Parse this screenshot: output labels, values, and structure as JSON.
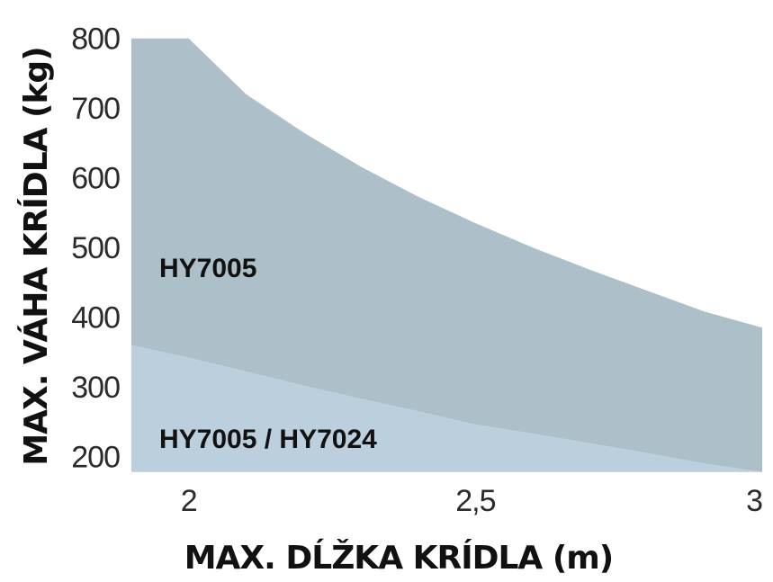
{
  "chart_data": {
    "type": "area",
    "xlabel": "MAX. DĹŽKA KRÍDLA (m)",
    "ylabel": "MAX. VÁHA KRÍDLA (kg)",
    "xlim": [
      1.9,
      3.0
    ],
    "ylim": [
      175,
      810
    ],
    "x_ticks": [
      2,
      2.5,
      3
    ],
    "x_tick_labels": [
      "2",
      "2,5",
      "3"
    ],
    "y_ticks": [
      200,
      300,
      400,
      500,
      600,
      700,
      800
    ],
    "y_tick_labels": [
      "200",
      "300",
      "400",
      "500",
      "600",
      "700",
      "800"
    ],
    "grid": false,
    "legend": "none",
    "series": [
      {
        "name": "HY7005",
        "color": "#adbfc9",
        "x": [
          1.9,
          2.0,
          2.1,
          2.2,
          2.3,
          2.4,
          2.5,
          2.6,
          2.7,
          2.8,
          2.9,
          3.0
        ],
        "upper": [
          800,
          800,
          720,
          665,
          616,
          573,
          535,
          500,
          468,
          438,
          408,
          385
        ],
        "lower": [
          360,
          342,
          322,
          302,
          283,
          265,
          246,
          233,
          219,
          205,
          190,
          178
        ]
      },
      {
        "name": "HY7005 / HY7024",
        "color": "#bccfdc",
        "x": [
          1.9,
          2.0,
          2.1,
          2.2,
          2.3,
          2.4,
          2.5,
          2.6,
          2.7,
          2.8,
          2.9,
          3.0
        ],
        "upper": [
          360,
          342,
          322,
          302,
          283,
          265,
          246,
          233,
          219,
          205,
          190,
          178
        ],
        "lower": [
          178,
          178,
          178,
          178,
          178,
          178,
          178,
          178,
          178,
          178,
          178,
          178
        ]
      }
    ],
    "labels": {
      "upper_region": "HY7005",
      "lower_region": "HY7005 / HY7024"
    }
  }
}
